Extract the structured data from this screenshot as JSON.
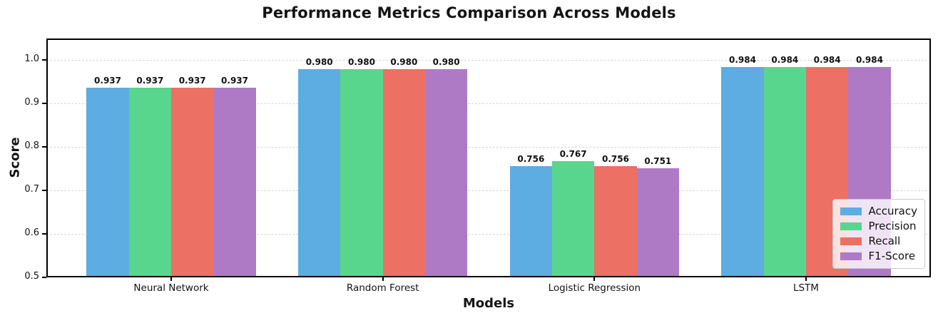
{
  "chart_data": {
    "type": "bar",
    "title": "Performance Metrics Comparison Across Models",
    "xlabel": "Models",
    "ylabel": "Score",
    "categories": [
      "Neural Network",
      "Random Forest",
      "Logistic Regression",
      "LSTM"
    ],
    "series": [
      {
        "name": "Accuracy",
        "color": "#5dade2",
        "values": [
          0.937,
          0.98,
          0.756,
          0.984
        ]
      },
      {
        "name": "Precision",
        "color": "#58d68d",
        "values": [
          0.937,
          0.98,
          0.767,
          0.984
        ]
      },
      {
        "name": "Recall",
        "color": "#ec7063",
        "values": [
          0.937,
          0.98,
          0.756,
          0.984
        ]
      },
      {
        "name": "F1-Score",
        "color": "#af7ac5",
        "values": [
          0.937,
          0.98,
          0.751,
          0.984
        ]
      }
    ],
    "ylim": [
      0.5,
      1.05
    ],
    "xlim": [
      -0.59,
      3.59
    ],
    "yticks": [
      0.5,
      0.6,
      0.7,
      0.8,
      0.9,
      1.0
    ],
    "ytick_label_decimals": 1,
    "value_label_decimals": 3,
    "bar_width_units": 0.2,
    "grid": "horizontal-dashed",
    "legend_position": "lower right",
    "background_color": "#ffffff",
    "spine_color": "#000000"
  }
}
